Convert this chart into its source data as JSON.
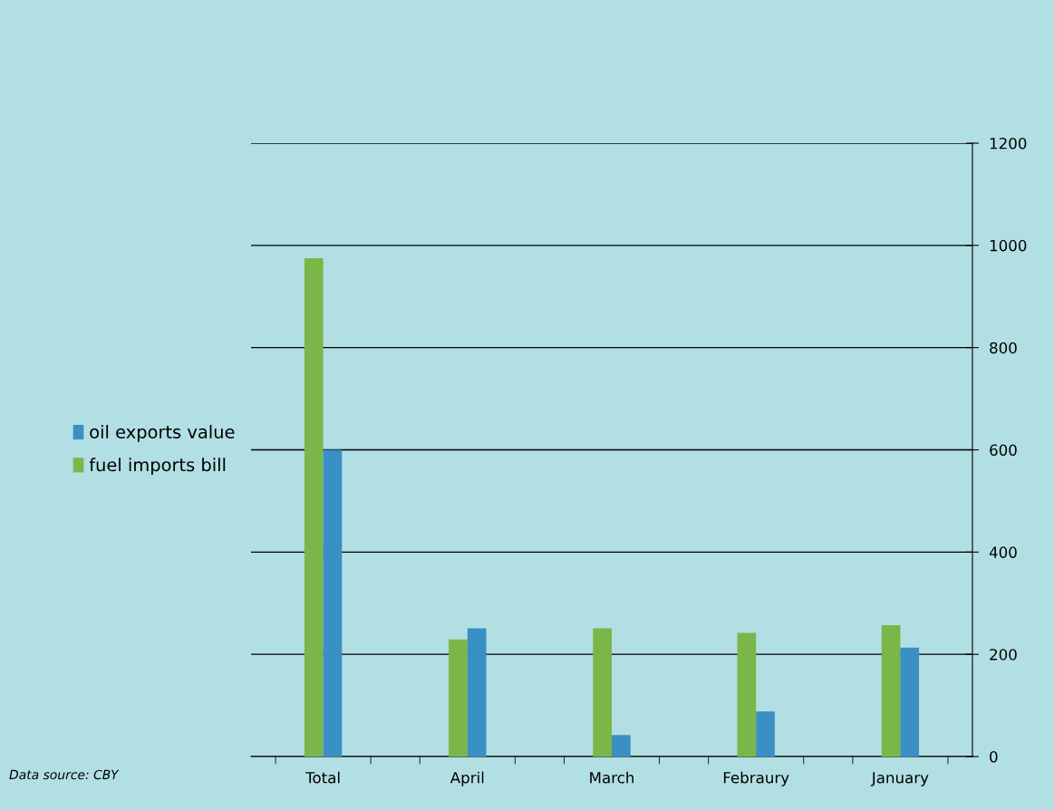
{
  "chart_data": {
    "type": "bar",
    "categories": [
      "Total",
      "April",
      "March",
      "Febraury",
      "January"
    ],
    "series": [
      {
        "name": "fuel imports bill",
        "color": "#7ab648",
        "values": [
          975,
          229,
          251,
          242,
          257
        ]
      },
      {
        "name": "oil exports value",
        "color": "#3a8fc4",
        "values": [
          600,
          251,
          42,
          88,
          213
        ]
      }
    ],
    "ylim": [
      0,
      1200
    ],
    "yticks": [
      0,
      200,
      400,
      600,
      800,
      1000,
      1200
    ],
    "grid": "y",
    "legend": "left",
    "annotations": [
      "Data source: CBY"
    ]
  }
}
